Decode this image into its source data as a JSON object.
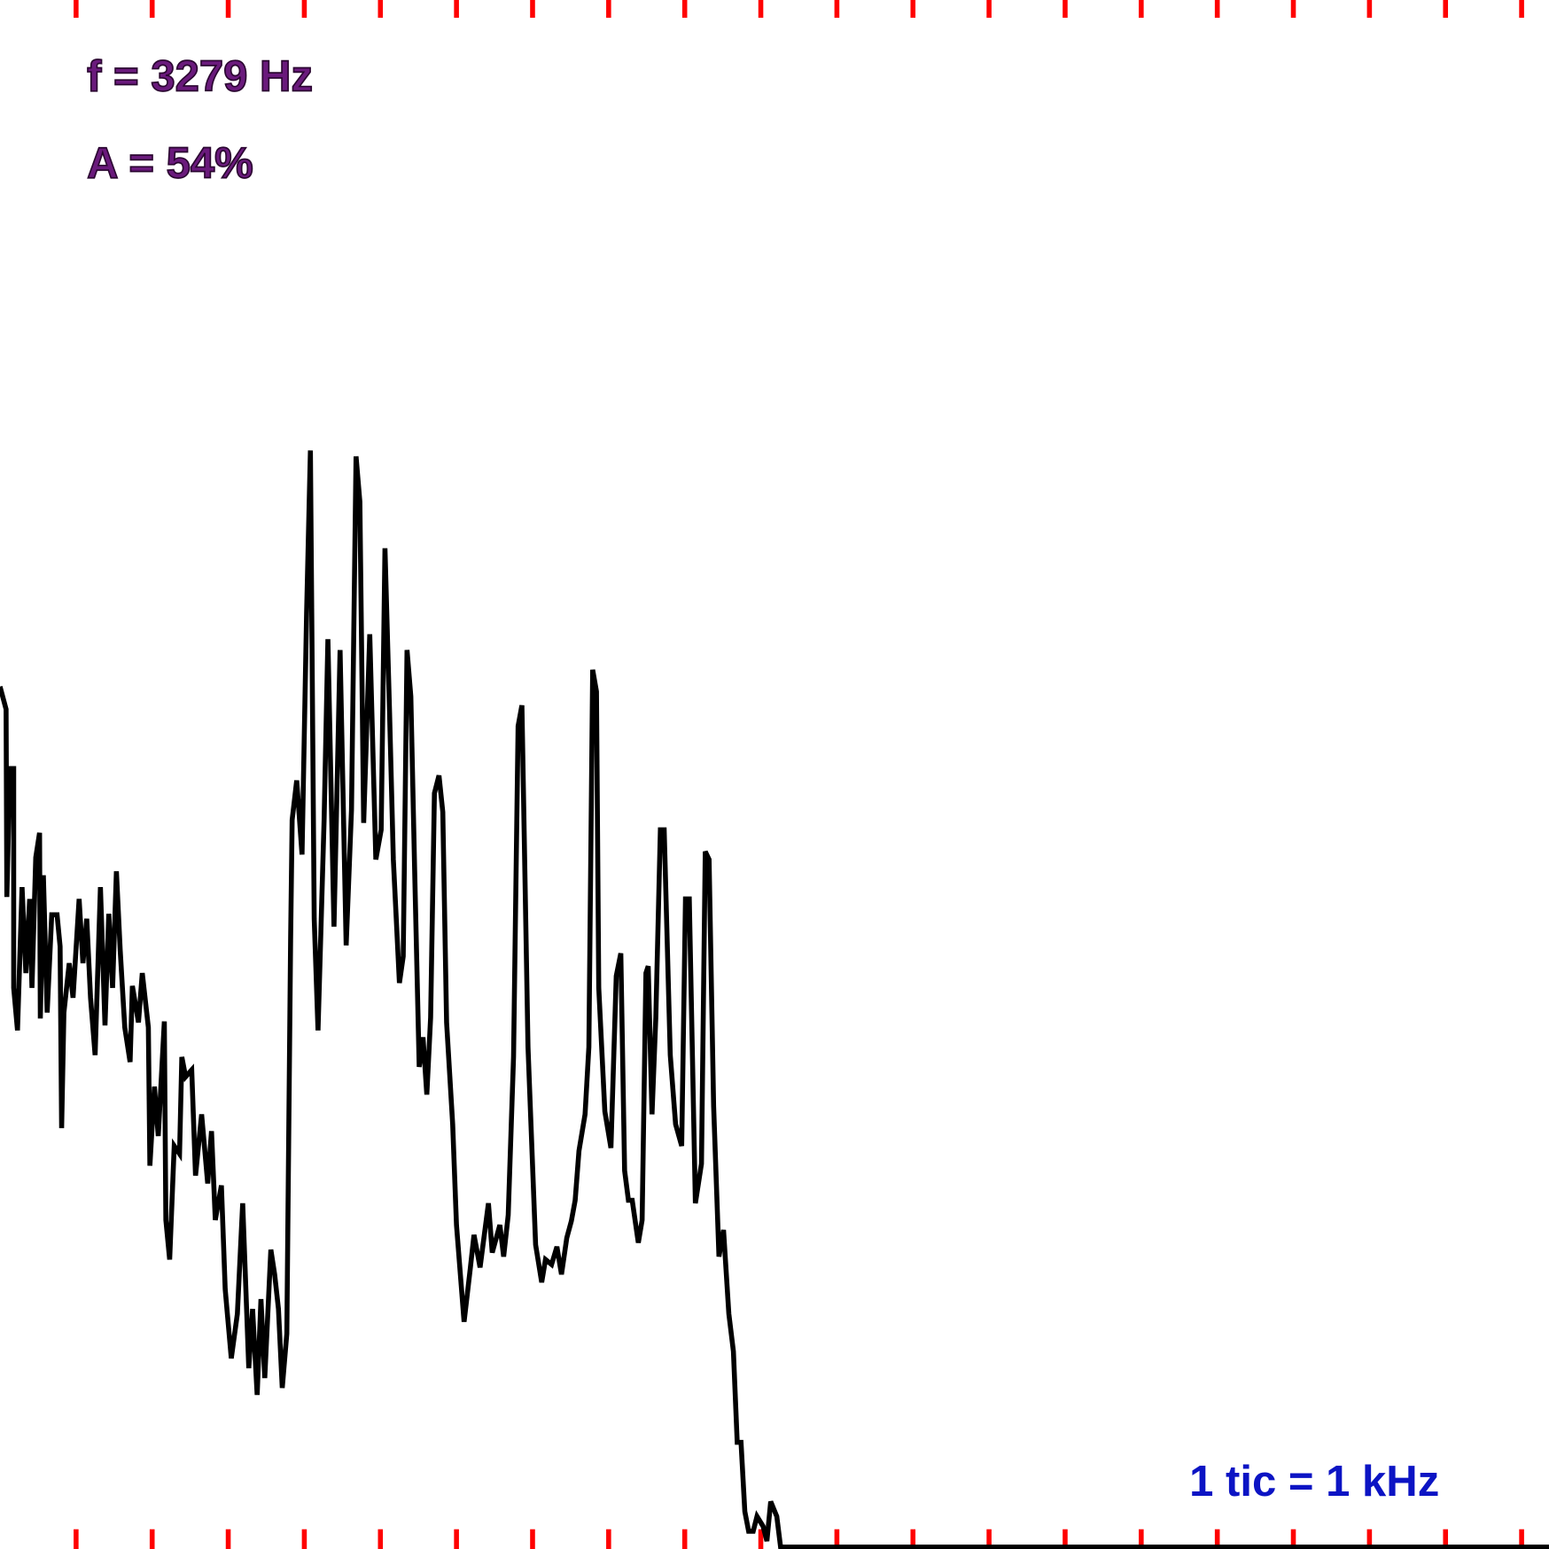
{
  "chart_data": {
    "type": "line",
    "readouts": [
      "f = 3279 Hz",
      "A = 54%"
    ],
    "scale_label": "1 tic = 1 kHz",
    "x": [
      0,
      0.08,
      0.09,
      0.13,
      0.18,
      0.18,
      0.23,
      0.29,
      0.34,
      0.39,
      0.42,
      0.47,
      0.52,
      0.53,
      0.57,
      0.62,
      0.68,
      0.75,
      0.79,
      0.81,
      0.84,
      0.91,
      0.96,
      1.04,
      1.09,
      1.14,
      1.19,
      1.25,
      1.32,
      1.38,
      1.43,
      1.48,
      1.53,
      1.58,
      1.64,
      1.71,
      1.74,
      1.82,
      1.87,
      1.95,
      1.97,
      2.03,
      2.08,
      2.16,
      2.18,
      2.23,
      2.29,
      2.36,
      2.39,
      2.44,
      2.52,
      2.57,
      2.65,
      2.73,
      2.78,
      2.83,
      2.91,
      2.96,
      3.04,
      3.12,
      3.19,
      3.27,
      3.32,
      3.38,
      3.43,
      3.48,
      3.56,
      3.61,
      3.66,
      3.71,
      3.77,
      3.82,
      3.84,
      3.9,
      3.97,
      4.03,
      4.08,
      4.13,
      4.18,
      4.26,
      4.31,
      4.39,
      4.47,
      4.55,
      4.62,
      4.68,
      4.73,
      4.78,
      4.86,
      4.94,
      5.01,
      5.06,
      5.12,
      5.17,
      5.25,
      5.3,
      5.35,
      5.4,
      5.45,
      5.51,
      5.56,
      5.61,
      5.66,
      5.71,
      5.77,
      5.82,
      5.87,
      5.95,
      6.0,
      6.1,
      6.18,
      6.23,
      6.31,
      6.42,
      6.47,
      6.57,
      6.62,
      6.68,
      6.75,
      6.81,
      6.86,
      6.94,
      7.04,
      7.12,
      7.17,
      7.25,
      7.32,
      7.38,
      7.45,
      7.51,
      7.56,
      7.61,
      7.69,
      7.74,
      7.79,
      7.84,
      7.87,
      7.95,
      8.03,
      8.1,
      8.16,
      8.21,
      8.26,
      8.31,
      8.39,
      8.44,
      8.49,
      8.52,
      8.57,
      8.62,
      8.68,
      8.73,
      8.81,
      8.88,
      8.96,
      9.01,
      9.06,
      9.14,
      9.22,
      9.27,
      9.32,
      9.38,
      9.45,
      9.51,
      9.58,
      9.64,
      9.69,
      9.74,
      9.79,
      9.84,
      9.9,
      9.95,
      10.03,
      10.08,
      10.13,
      10.21,
      10.26,
      20.36
    ],
    "series": [
      {
        "color": "#000000",
        "values": [
          871,
          848,
          658,
          788,
          788,
          566,
          523,
          668,
          581,
          656,
          566,
          698,
          723,
          535,
          680,
          541,
          640,
          640,
          608,
          424,
          541,
          591,
          556,
          656,
          591,
          636,
          556,
          498,
          668,
          528,
          641,
          566,
          684,
          604,
          526,
          491,
          568,
          531,
          581,
          526,
          386,
          466,
          416,
          532,
          331,
          291,
          406,
          398,
          496,
          476,
          483,
          376,
          438,
          368,
          421,
          331,
          366,
          261,
          191,
          236,
          348,
          181,
          241,
          154,
          251,
          171,
          301,
          276,
          241,
          161,
          216,
          616,
          736,
          776,
          701,
          946,
          1110,
          636,
          523,
          736,
          919,
          628,
          908,
          609,
          746,
          1104,
          1058,
          733,
          924,
          696,
          726,
          1011,
          846,
          696,
          571,
          598,
          908,
          861,
          686,
          486,
          516,
          458,
          536,
          763,
          781,
          744,
          531,
          428,
          326,
          228,
          281,
          316,
          283,
          348,
          298,
          326,
          294,
          336,
          496,
          831,
          852,
          506,
          306,
          268,
          291,
          286,
          304,
          276,
          313,
          330,
          351,
          401,
          438,
          506,
          888,
          866,
          566,
          441,
          404,
          578,
          601,
          381,
          351,
          351,
          308,
          331,
          581,
          588,
          438,
          536,
          726,
          726,
          498,
          428,
          406,
          656,
          656,
          348,
          388,
          704,
          696,
          446,
          294,
          321,
          236,
          198,
          106,
          106,
          36,
          16,
          16,
          31,
          21,
          6,
          46,
          31,
          0,
          0
        ]
      }
    ],
    "xlim": [
      0,
      20.36
    ],
    "ylim": [
      0,
      1566
    ],
    "xticks": [
      1,
      2,
      3,
      4,
      5,
      6,
      7,
      8,
      9,
      10,
      11,
      12,
      13,
      14,
      15,
      16,
      17,
      18,
      19,
      20
    ],
    "tick_color": "#ff0000"
  }
}
